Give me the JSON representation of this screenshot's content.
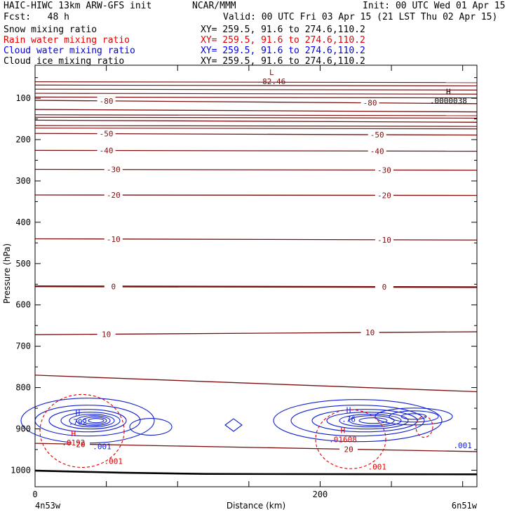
{
  "header": {
    "model": "HAIC-HIWC 13km ARW-GFS init",
    "org": "NCAR/MMM",
    "init": "Init: 00 UTC Wed 01 Apr 15",
    "fcst": "Fcst:   48 h",
    "valid": "Valid: 00 UTC Fri 03 Apr 15 (21 LST Thu 02 Apr 15)",
    "fields": [
      {
        "name": "Snow mixing ratio",
        "xy": "XY= 259.5, 91.6 to 274.6,110.2",
        "color": "#000000"
      },
      {
        "name": "Rain water mixing ratio",
        "xy": "XY= 259.5, 91.6 to 274.6,110.2",
        "color": "#e00000"
      },
      {
        "name": "Cloud water mixing ratio",
        "xy": "XY= 259.5, 91.6 to 274.6,110.2",
        "color": "#0000e0"
      },
      {
        "name": "Cloud ice mixing ratio",
        "xy": "XY= 259.5, 91.6 to 274.6,110.2",
        "color": "#000000"
      }
    ]
  },
  "colors": {
    "temperature": "#7a1010",
    "rain": "#e00000",
    "cloud_water": "#1020d0",
    "terrain": "#000000"
  },
  "chart_data": {
    "type": "line",
    "title": "",
    "xlabel": "Distance (km)",
    "ylabel": "Pressure (hPa)",
    "xlim": [
      0,
      310
    ],
    "ylim": [
      1040,
      20
    ],
    "x_ticks": [
      0,
      200
    ],
    "y_ticks": [
      100,
      200,
      300,
      400,
      500,
      600,
      700,
      800,
      900,
      1000
    ],
    "x_endpoints": {
      "left": "4n53w",
      "right": "6n51w"
    },
    "temperature_contours": [
      {
        "label": "-80",
        "p_left": 105,
        "p_right": 113,
        "labels_at": [
          50,
          235
        ]
      },
      {
        "label": "-70",
        "p_left": 127,
        "p_right": 133
      },
      {
        "label": "-60",
        "p_left": 153,
        "p_right": 158
      },
      {
        "label": "-50",
        "p_left": 185,
        "p_right": 189,
        "labels_at": [
          50,
          240
        ]
      },
      {
        "label": "-40",
        "p_left": 226,
        "p_right": 228,
        "labels_at": [
          50,
          240
        ]
      },
      {
        "label": "-30",
        "p_left": 272,
        "p_right": 274,
        "labels_at": [
          55,
          245
        ]
      },
      {
        "label": "-20",
        "p_left": 334,
        "p_right": 335,
        "labels_at": [
          55,
          245
        ]
      },
      {
        "label": "-10",
        "p_left": 440,
        "p_right": 443,
        "labels_at": [
          55,
          245
        ]
      },
      {
        "label": "0",
        "p_left": 555,
        "p_right": 557,
        "labels_at": [
          55,
          245
        ],
        "bold": true
      },
      {
        "label": "10",
        "p_left": 672,
        "p_right": 665,
        "labels_at": [
          50,
          235
        ]
      },
      {
        "label": "20",
        "p_left": 770,
        "p_right": 810
      },
      {
        "label": "20",
        "p_left": 935,
        "p_right": 955,
        "labels_at": [
          32,
          220
        ]
      }
    ],
    "extrema": [
      {
        "kind": "L",
        "value": "-82.46",
        "x": 166,
        "p": 56,
        "color": "#7a1010"
      },
      {
        "kind": "H",
        "value": ".0000038",
        "x": 290,
        "p": 102,
        "color": "#000000"
      },
      {
        "kind": "H",
        "value": ".792",
        "x": 30,
        "p": 880,
        "color": "#1020d0"
      },
      {
        "kind": "H",
        "value": ".76",
        "x": 220,
        "p": 873,
        "color": "#1020d0"
      },
      {
        "kind": "H",
        "value": ".0192",
        "x": 27,
        "p": 930,
        "color": "#e00000"
      },
      {
        "kind": "H",
        "value": ".01608",
        "x": 216,
        "p": 922,
        "color": "#e00000"
      }
    ],
    "contour_labels": [
      {
        "value": ".001",
        "x": 47,
        "p": 942,
        "color": "#1020d0"
      },
      {
        "value": ".001",
        "x": 55,
        "p": 978,
        "color": "#e00000"
      },
      {
        "value": ".001",
        "x": 300,
        "p": 940,
        "color": "#1020d0"
      },
      {
        "value": ".001",
        "x": 240,
        "p": 992,
        "color": "#e00000"
      }
    ],
    "grid": false
  }
}
